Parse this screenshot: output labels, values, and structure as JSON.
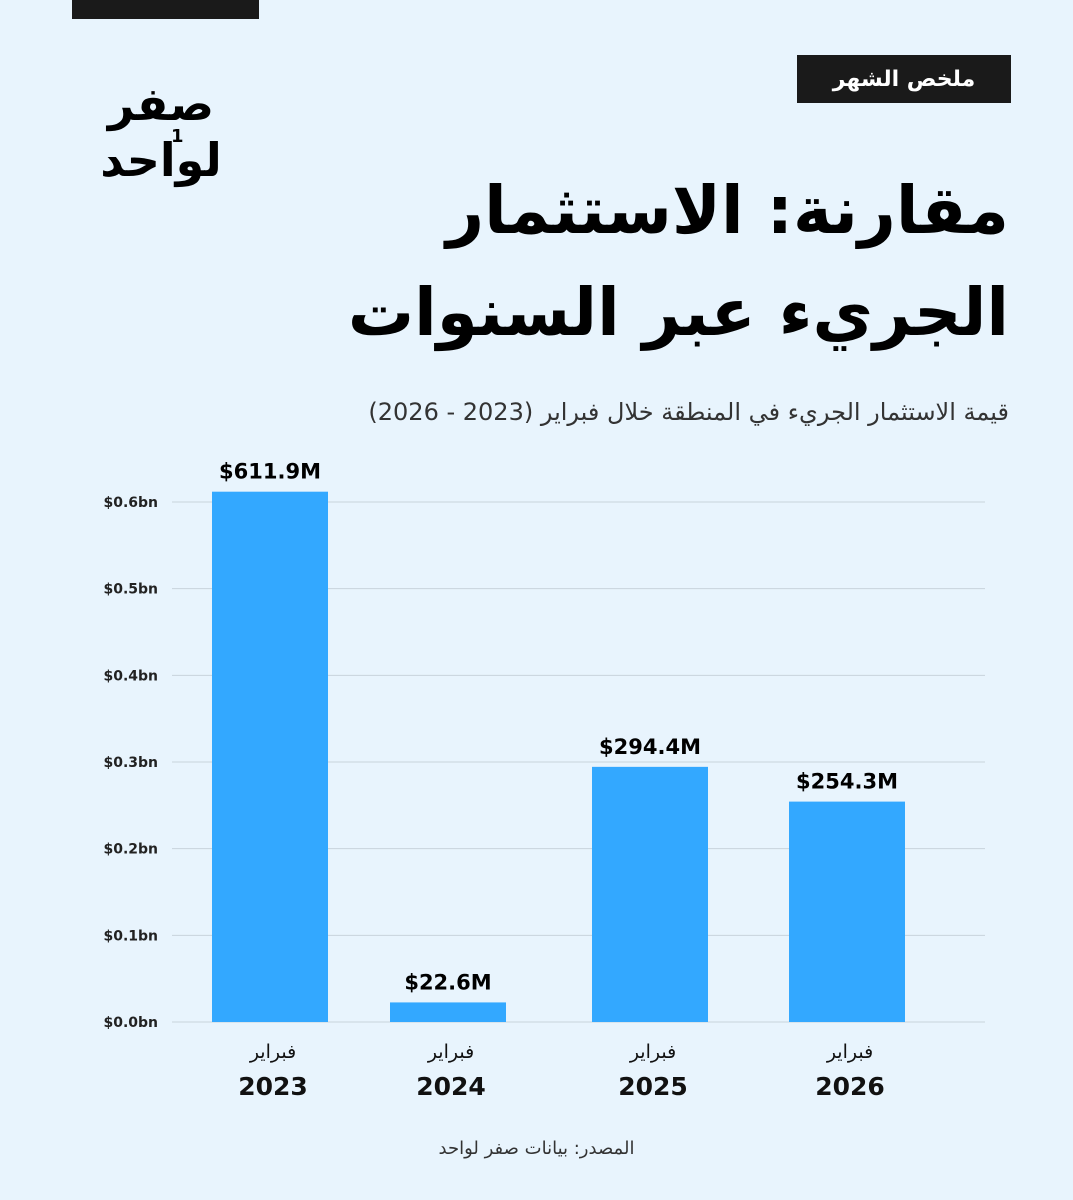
{
  "badge": "ملخص الشهر",
  "logo": {
    "line1": "صفر",
    "line2": "لواحد",
    "mark": "1"
  },
  "title": "مقارنة: الاستثمار الجريء عبر السنوات",
  "subtitle": "قيمة الاستثمار الجريء في المنطقة خلال فبراير (2023 - 2026)",
  "source": "المصدر: بيانات صفر لواحد",
  "colors": {
    "background": "#e8f4fd",
    "bar": "#33a8ff",
    "dark": "#1a1a1a",
    "grid": "#c9d3dc"
  },
  "chart_data": {
    "type": "bar",
    "categories": [
      {
        "month": "فبراير",
        "year": "2023"
      },
      {
        "month": "فبراير",
        "year": "2024"
      },
      {
        "month": "فبراير",
        "year": "2025"
      },
      {
        "month": "فبراير",
        "year": "2026"
      }
    ],
    "values": [
      611.9,
      22.6,
      294.4,
      254.3
    ],
    "value_labels": [
      "$611.9M",
      "$22.6M",
      "$294.4M",
      "$254.3M"
    ],
    "unit": "M USD",
    "y_ticks": [
      0.0,
      0.1,
      0.2,
      0.3,
      0.4,
      0.5,
      0.6
    ],
    "y_tick_labels": [
      "$0.0bn",
      "$0.1bn",
      "$0.2bn",
      "$0.3bn",
      "$0.4bn",
      "$0.5bn",
      "$0.6bn"
    ],
    "ylim": [
      0,
      0.6
    ],
    "grid": true
  }
}
